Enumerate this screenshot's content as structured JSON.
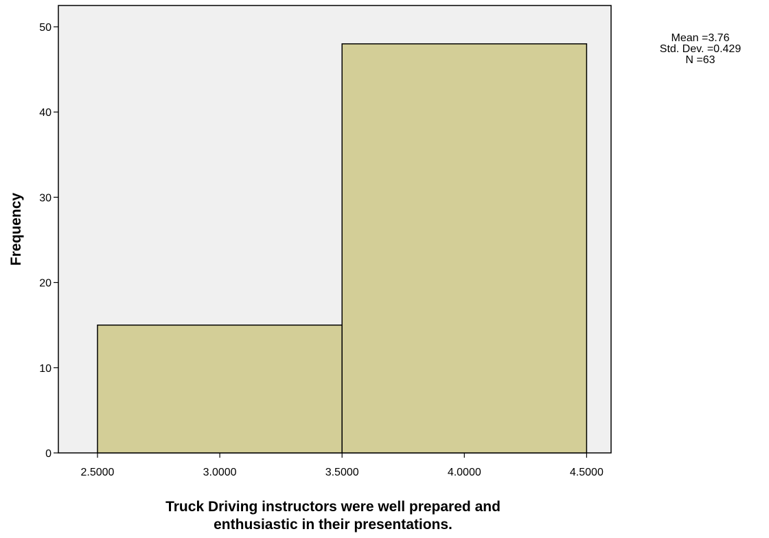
{
  "chart_data": {
    "type": "bar",
    "histogram": true,
    "bins": [
      {
        "start": 2.5,
        "end": 3.5,
        "value": 15
      },
      {
        "start": 3.5,
        "end": 4.5,
        "value": 48
      }
    ],
    "x_ticks": [
      "2.5000",
      "3.0000",
      "3.5000",
      "4.0000",
      "4.5000"
    ],
    "x_tick_values": [
      2.5,
      3.0,
      3.5,
      4.0,
      4.5
    ],
    "y_ticks": [
      "0",
      "10",
      "20",
      "30",
      "40",
      "50"
    ],
    "y_tick_values": [
      0,
      10,
      20,
      30,
      40,
      50
    ],
    "xlim": [
      2.34,
      4.6
    ],
    "ylim": [
      0,
      52.5
    ],
    "xlabel_lines": [
      "Truck Driving instructors were well prepared and",
      "enthusiastic in their presentations."
    ],
    "ylabel": "Frequency",
    "stats": [
      "Mean =3.76",
      "Std. Dev. =0.429",
      "N =63"
    ],
    "colors": {
      "plot_bg": "#f0f0f0",
      "bar_fill": "#d3ce97",
      "bar_stroke": "#000000"
    },
    "grid": false
  }
}
